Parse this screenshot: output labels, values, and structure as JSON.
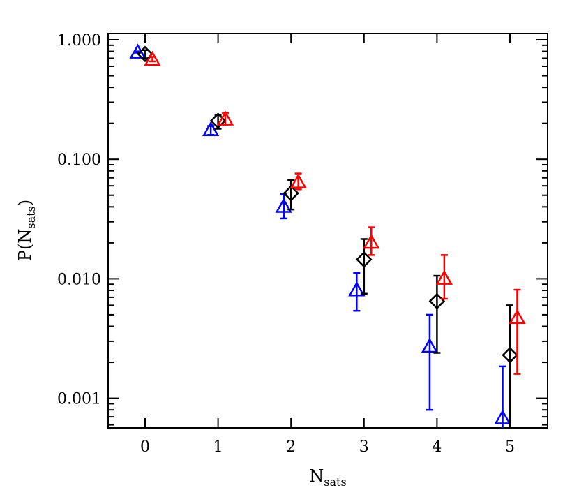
{
  "chart_data": {
    "type": "scatter",
    "title": "",
    "xlabel": "N",
    "xlabel_sub": "sats",
    "ylabel": "P(N",
    "ylabel_sub": "sats",
    "ylabel_close": ")",
    "xlim": [
      -0.5,
      5.5
    ],
    "ylim": [
      0.0005,
      1.1
    ],
    "yscale": "log",
    "grid": false,
    "legend": "none",
    "xticks": [
      0,
      1,
      2,
      3,
      4,
      5
    ],
    "xtick_labels": [
      "0",
      "1",
      "2",
      "3",
      "4",
      "5"
    ],
    "yticks": [
      0.001,
      0.01,
      0.1,
      1.0
    ],
    "ytick_labels": [
      "0.001",
      "0.010",
      "0.100",
      "1.000"
    ],
    "series": [
      {
        "color": "#0000ff",
        "marker": "triangle",
        "x": [
          -0.1,
          0.9,
          1.9,
          2.9,
          3.9,
          4.9
        ],
        "y": [
          0.78,
          0.175,
          0.04,
          0.008,
          0.0027,
          0.00068
        ],
        "y_err_low": [
          0.78,
          0.16,
          0.032,
          0.0054,
          0.0008,
          0.0003
        ],
        "y_err_high": [
          0.8,
          0.19,
          0.051,
          0.0112,
          0.005,
          0.00185
        ]
      },
      {
        "color": "#000000",
        "marker": "diamond",
        "x": [
          0.0,
          1.0,
          2.0,
          3.0,
          4.0,
          5.0
        ],
        "y": [
          0.76,
          0.21,
          0.052,
          0.0145,
          0.0065,
          0.0023
        ],
        "y_err_low": [
          0.7,
          0.18,
          0.038,
          0.0075,
          0.0024,
          0.0003
        ],
        "y_err_high": [
          0.82,
          0.235,
          0.067,
          0.0215,
          0.0106,
          0.006
        ]
      },
      {
        "color": "#ff0000",
        "marker": "triangle",
        "x": [
          0.1,
          1.1,
          2.1,
          3.1,
          4.1,
          5.1
        ],
        "y": [
          0.68,
          0.215,
          0.064,
          0.02,
          0.01,
          0.0047
        ],
        "y_err_low": [
          0.66,
          0.195,
          0.056,
          0.0158,
          0.0068,
          0.0016
        ],
        "y_err_high": [
          0.72,
          0.245,
          0.076,
          0.027,
          0.0158,
          0.0081
        ]
      }
    ]
  }
}
